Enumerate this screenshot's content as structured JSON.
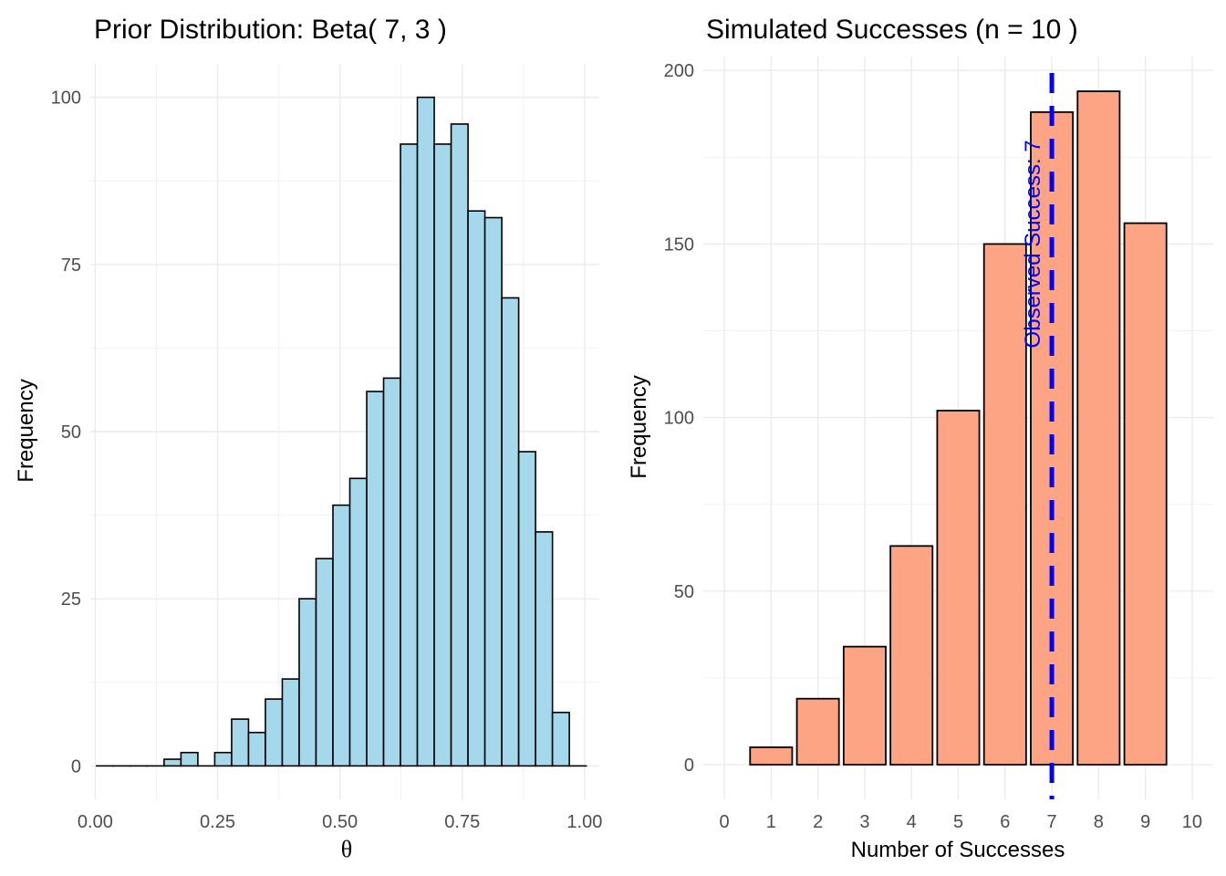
{
  "chart_data": [
    {
      "type": "bar",
      "subtype": "histogram",
      "title": "Prior Distribution: Beta( 7, 3 )",
      "xlabel": "θ",
      "ylabel": "Frequency",
      "xlim": [
        -0.01,
        1.03
      ],
      "ylim": [
        -5,
        105
      ],
      "x_ticks": [
        0.0,
        0.25,
        0.5,
        0.75,
        1.0
      ],
      "x_tick_labels": [
        "0.00",
        "0.25",
        "0.50",
        "0.75",
        "1.00"
      ],
      "y_ticks": [
        0,
        25,
        50,
        75,
        100
      ],
      "y_tick_labels": [
        "0",
        "25",
        "50",
        "75",
        "100"
      ],
      "grid": true,
      "bin_width": 0.0345,
      "bin_centers": [
        0.02,
        0.0545,
        0.089,
        0.1235,
        0.158,
        0.1925,
        0.227,
        0.2615,
        0.296,
        0.3305,
        0.365,
        0.3995,
        0.434,
        0.4685,
        0.503,
        0.5375,
        0.572,
        0.6065,
        0.641,
        0.6755,
        0.71,
        0.7445,
        0.779,
        0.8135,
        0.848,
        0.8825,
        0.917,
        0.9515,
        0.986
      ],
      "values": [
        0,
        0,
        0,
        0,
        1,
        2,
        0,
        2,
        7,
        5,
        10,
        13,
        25,
        31,
        39,
        43,
        56,
        58,
        93,
        100,
        93,
        96,
        83,
        82,
        70,
        47,
        35,
        8,
        0
      ],
      "fill_color": "#a6d8ec",
      "edge_color": "#000000"
    },
    {
      "type": "bar",
      "title": "Simulated Successes (n = 10 )",
      "xlabel": "Number of Successes",
      "ylabel": "Frequency",
      "xlim": [
        -0.45,
        10.45
      ],
      "ylim": [
        -10,
        204
      ],
      "x_ticks": [
        0,
        1,
        2,
        3,
        4,
        5,
        6,
        7,
        8,
        9,
        10
      ],
      "x_tick_labels": [
        "0",
        "1",
        "2",
        "3",
        "4",
        "5",
        "6",
        "7",
        "8",
        "9",
        "10"
      ],
      "y_ticks": [
        0,
        50,
        100,
        150,
        200
      ],
      "y_tick_labels": [
        "0",
        "50",
        "100",
        "150",
        "200"
      ],
      "grid": true,
      "categories": [
        1,
        2,
        3,
        4,
        5,
        6,
        7,
        8,
        9
      ],
      "values": [
        5,
        19,
        34,
        63,
        102,
        150,
        188,
        194,
        156
      ],
      "fill_color": "#fca483",
      "edge_color": "#000000",
      "reference_line": {
        "x": 7,
        "style": "dashed",
        "color": "#0000ff"
      },
      "annotation": {
        "text": "Observed Success: 7",
        "x": 7,
        "y": 150,
        "rotation_degrees": 90,
        "color": "#0000ff"
      }
    }
  ]
}
